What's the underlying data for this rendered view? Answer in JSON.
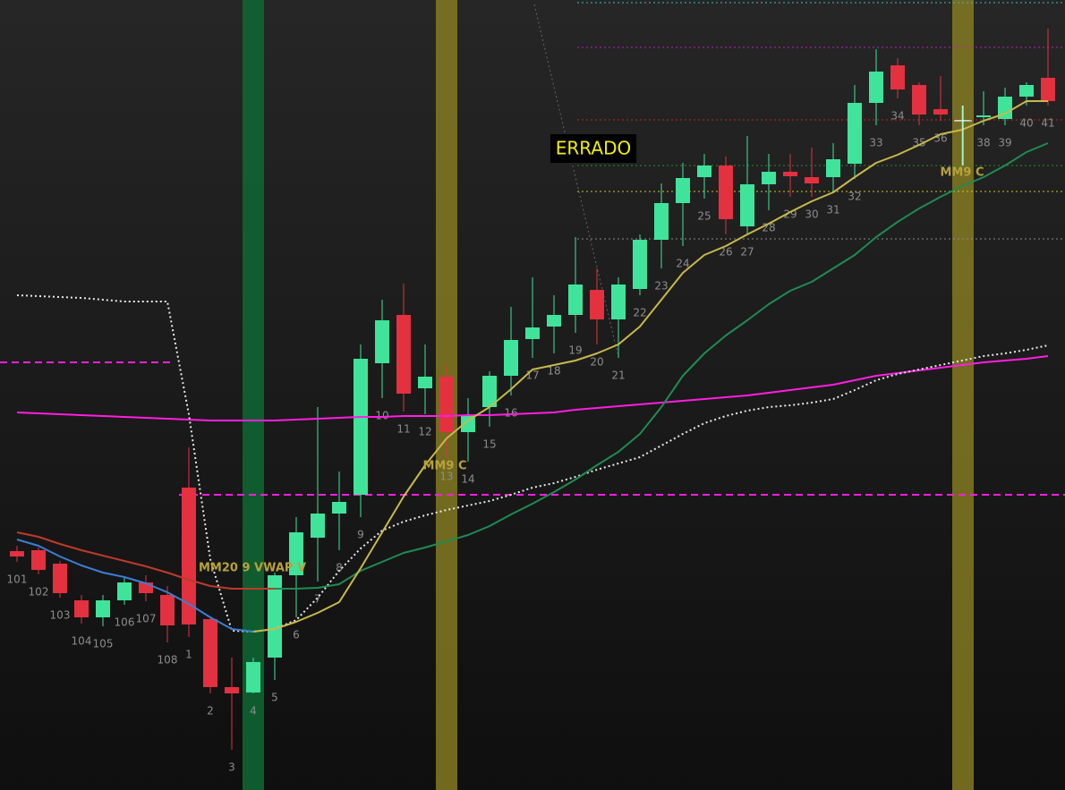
{
  "chart_data": {
    "type": "candlestick",
    "ylim": [
      0,
      883
    ],
    "up_color": "#3fe49a",
    "down_color": "#e3313f",
    "categories": [
      "101",
      "102",
      "103",
      "104",
      "105",
      "106",
      "107",
      "108",
      "1",
      "2",
      "3",
      "4",
      "5",
      "6",
      "7",
      "8",
      "9",
      "10",
      "11",
      "12",
      "13",
      "14",
      "15",
      "16",
      "17",
      "18",
      "19",
      "20",
      "21",
      "22",
      "23",
      "24",
      "25",
      "26",
      "27",
      "28",
      "29",
      "30",
      "31",
      "32",
      "33",
      "34",
      "35",
      "36",
      null,
      "38",
      "39",
      "40",
      "41"
    ],
    "open": [
      267,
      268,
      253,
      212,
      193,
      212,
      232,
      218,
      338,
      191,
      115,
      109,
      148,
      240,
      282,
      309,
      330,
      477,
      531,
      449,
      462,
      400,
      428,
      463,
      504,
      518,
      531,
      559,
      526,
      560,
      615,
      656,
      685,
      698,
      630,
      677,
      691,
      685,
      685,
      700,
      768,
      810,
      788,
      761,
      748,
      752,
      750,
      775,
      796
    ],
    "high": [
      273,
      271,
      256,
      218,
      218,
      238,
      240,
      228,
      383,
      193,
      148,
      148,
      243,
      305,
      428,
      356,
      498,
      548,
      566,
      498,
      475,
      438,
      468,
      540,
      573,
      553,
      618,
      583,
      573,
      621,
      678,
      701,
      711,
      708,
      731,
      711,
      711,
      718,
      723,
      788,
      828,
      818,
      791,
      798,
      765,
      781,
      785,
      791,
      851
    ],
    "low": [
      255,
      241,
      215,
      186,
      183,
      207,
      211,
      165,
      171,
      108,
      45,
      108,
      123,
      193,
      233,
      268,
      305,
      438,
      423,
      420,
      370,
      367,
      406,
      441,
      483,
      488,
      511,
      498,
      483,
      553,
      583,
      608,
      661,
      621,
      621,
      648,
      663,
      663,
      668,
      683,
      743,
      773,
      743,
      748,
      698,
      743,
      743,
      765,
      765
    ],
    "close": [
      261,
      246,
      220,
      193,
      212,
      232,
      220,
      184,
      185,
      115,
      108,
      143,
      240,
      288,
      309,
      322,
      482,
      525,
      443,
      462,
      400,
      418,
      463,
      503,
      517,
      531,
      565,
      526,
      565,
      615,
      656,
      684,
      698,
      638,
      677,
      691,
      686,
      678,
      705,
      768,
      803,
      783,
      755,
      755,
      749,
      754,
      775,
      788,
      770
    ],
    "lines": [
      {
        "color": "#ff1ee0",
        "style": "solid",
        "values": [
          422,
          421,
          420,
          419,
          418,
          417,
          416,
          415,
          414,
          413,
          413,
          413,
          413,
          414,
          415,
          416,
          417,
          417,
          418,
          418,
          418,
          419,
          419,
          420,
          421,
          422,
          425,
          427,
          429,
          431,
          433,
          435,
          437,
          439,
          441,
          444,
          447,
          450,
          453,
          458,
          463,
          466,
          469,
          472,
          475,
          478,
          480,
          482,
          485
        ]
      },
      {
        "color": "#e8e8e8",
        "style": "dotted",
        "values": [
          553,
          552,
          551,
          550,
          548,
          546,
          546,
          546,
          420,
          258,
          178,
          177,
          180,
          190,
          215,
          245,
          270,
          290,
          300,
          307,
          313,
          318,
          323,
          330,
          338,
          343,
          350,
          358,
          365,
          372,
          385,
          398,
          410,
          418,
          424,
          428,
          430,
          433,
          437,
          447,
          458,
          465,
          470,
          475,
          480,
          485,
          488,
          492,
          497
        ]
      },
      {
        "color": "#c0392b",
        "style": "solid",
        "values": [
          288,
          283,
          275,
          268,
          262,
          256,
          250,
          243,
          235,
          228,
          225,
          225,
          225,
          225,
          null,
          null,
          null,
          null,
          null,
          null,
          null,
          null,
          null,
          null,
          null,
          null,
          null,
          null,
          null,
          null,
          null,
          null,
          null,
          null,
          null,
          null,
          null,
          null,
          null,
          null,
          null,
          null,
          null,
          null,
          null,
          null,
          null,
          null,
          null
        ]
      },
      {
        "color": "#3a7fd5",
        "style": "solid",
        "values": [
          280,
          273,
          261,
          251,
          243,
          238,
          231,
          221,
          208,
          193,
          180,
          177,
          null,
          null,
          null,
          null,
          null,
          null,
          null,
          null,
          null,
          null,
          null,
          null,
          null,
          null,
          null,
          null,
          null,
          null,
          null,
          null,
          null,
          null,
          null,
          null,
          null,
          null,
          null,
          null,
          null,
          null,
          null,
          null,
          null,
          null,
          null,
          null,
          null
        ]
      },
      {
        "color": "#1e8c50",
        "style": "solid",
        "values": [
          null,
          null,
          null,
          null,
          null,
          null,
          null,
          null,
          null,
          null,
          null,
          null,
          225,
          225,
          226,
          230,
          245,
          255,
          265,
          271,
          278,
          285,
          295,
          308,
          320,
          333,
          347,
          363,
          378,
          398,
          428,
          463,
          488,
          508,
          525,
          543,
          558,
          568,
          583,
          598,
          618,
          635,
          650,
          663,
          675,
          685,
          698,
          713,
          723
        ]
      },
      {
        "color": "#c9b84a",
        "style": "solid",
        "values": [
          null,
          null,
          null,
          null,
          null,
          null,
          null,
          null,
          null,
          null,
          null,
          177,
          180,
          188,
          198,
          210,
          248,
          288,
          328,
          363,
          393,
          413,
          428,
          448,
          470,
          475,
          480,
          488,
          498,
          518,
          548,
          578,
          598,
          608,
          621,
          633,
          646,
          658,
          668,
          685,
          701,
          710,
          721,
          733,
          738,
          748,
          756,
          770,
          770
        ]
      }
    ],
    "levels": [
      {
        "value": 478,
        "color": "#ff1ee0",
        "style": "dashed"
      },
      {
        "value": 330,
        "color": "#ff1ee0",
        "style": "dashed"
      },
      {
        "value": 880,
        "color": "#2ec4c4",
        "style": "dotted"
      },
      {
        "value": 830,
        "color": "#c020c0",
        "style": "dotted"
      },
      {
        "value": 749,
        "color": "#c02828",
        "style": "dotted"
      },
      {
        "value": 698,
        "color": "#2a8a2a",
        "style": "dotted"
      },
      {
        "value": 669,
        "color": "#c8c820",
        "style": "dotted"
      },
      {
        "value": 616,
        "color": "#8a8a8a",
        "style": "dotted"
      }
    ],
    "annotations": [
      "ERRADO",
      "MM9 C",
      "MM9 C",
      "MM20 9 VWAP V"
    ]
  }
}
